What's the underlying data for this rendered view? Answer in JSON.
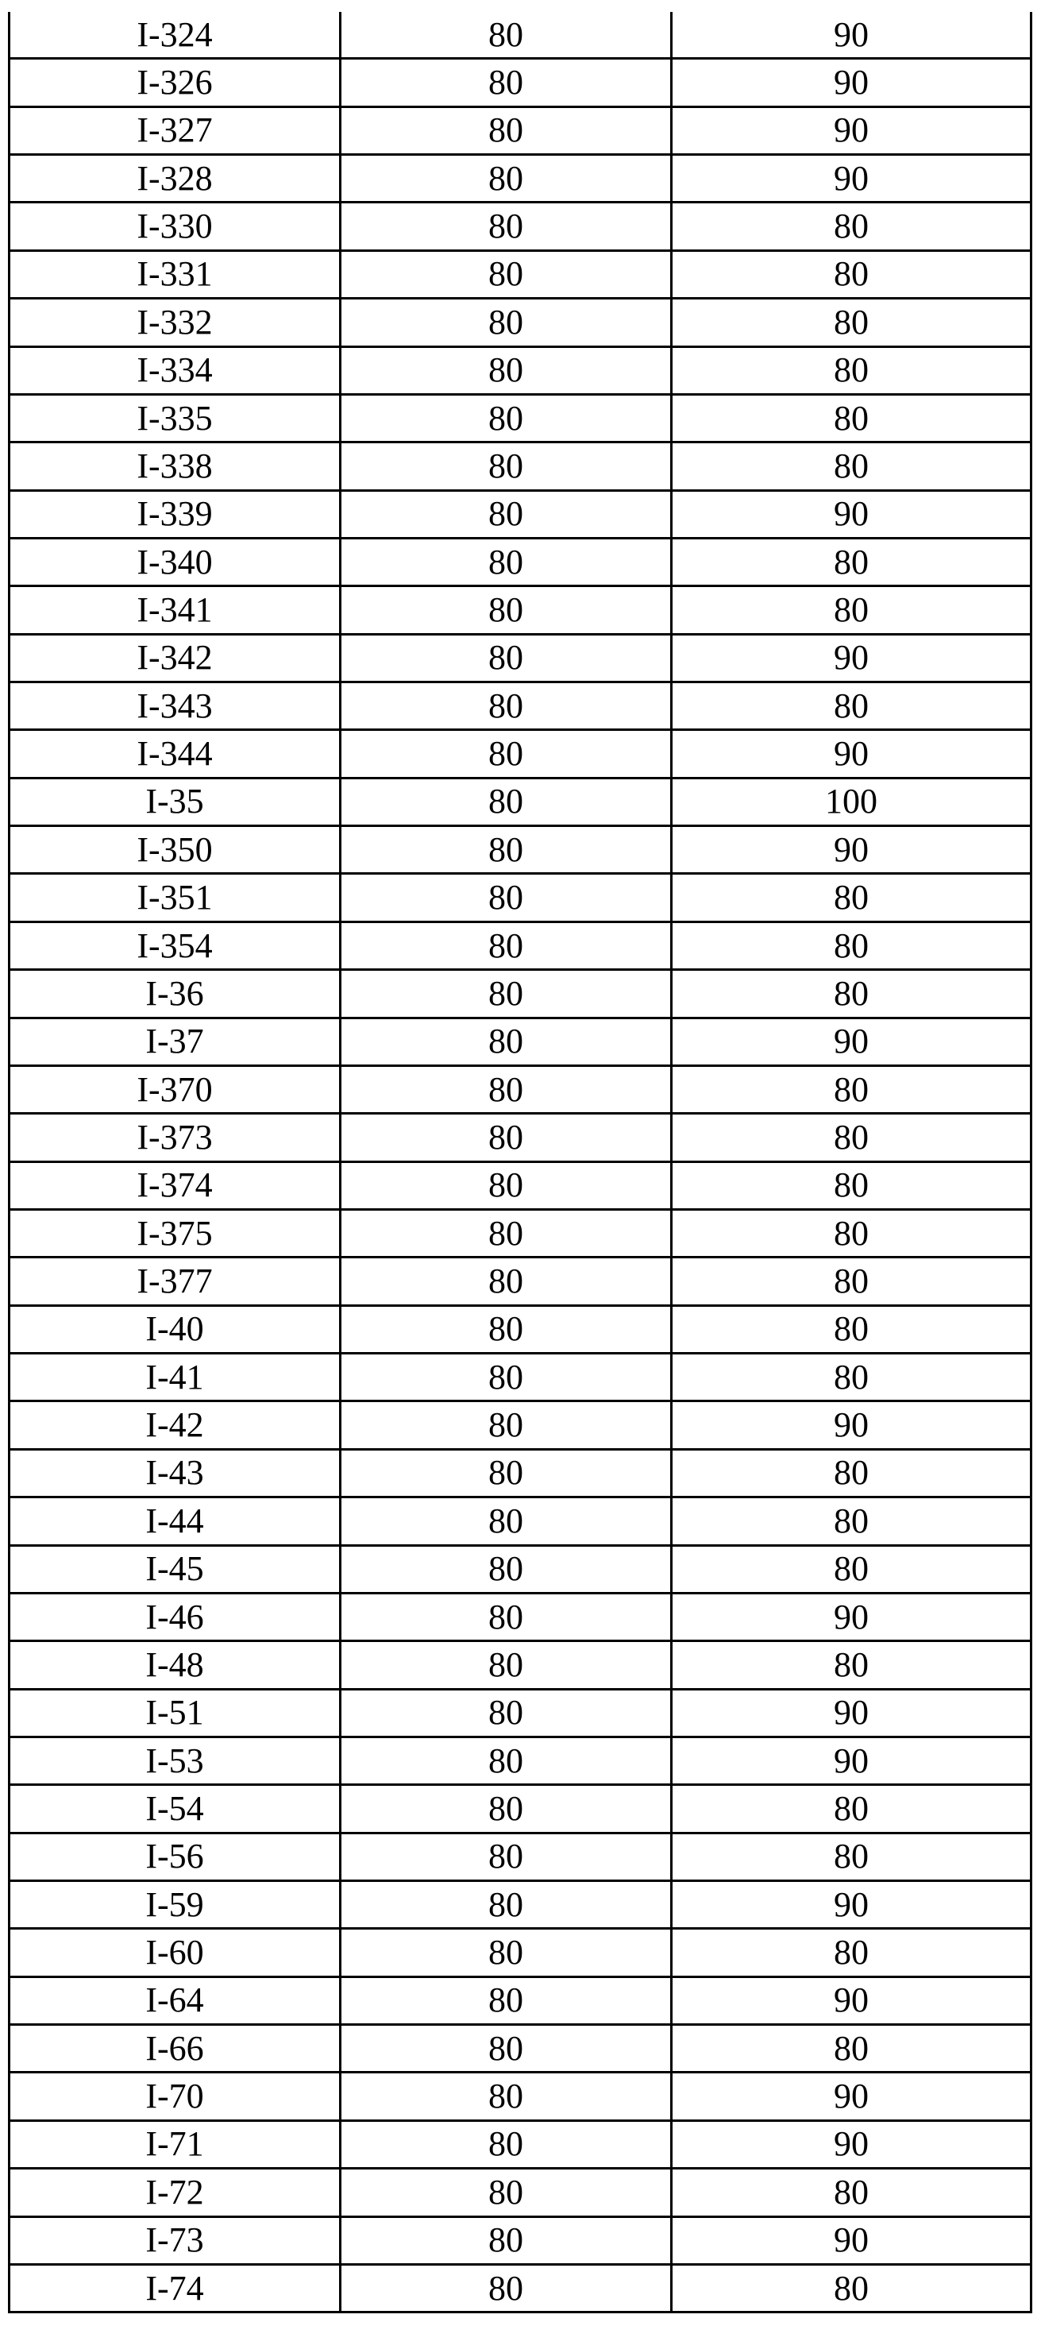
{
  "colors": {
    "background": "#ffffff",
    "border": "#000000",
    "text": "#000000"
  },
  "table": {
    "rows": [
      [
        "I-324",
        "80",
        "90"
      ],
      [
        "I-326",
        "80",
        "90"
      ],
      [
        "I-327",
        "80",
        "90"
      ],
      [
        "I-328",
        "80",
        "90"
      ],
      [
        "I-330",
        "80",
        "80"
      ],
      [
        "I-331",
        "80",
        "80"
      ],
      [
        "I-332",
        "80",
        "80"
      ],
      [
        "I-334",
        "80",
        "80"
      ],
      [
        "I-335",
        "80",
        "80"
      ],
      [
        "I-338",
        "80",
        "80"
      ],
      [
        "I-339",
        "80",
        "90"
      ],
      [
        "I-340",
        "80",
        "80"
      ],
      [
        "I-341",
        "80",
        "80"
      ],
      [
        "I-342",
        "80",
        "90"
      ],
      [
        "I-343",
        "80",
        "80"
      ],
      [
        "I-344",
        "80",
        "90"
      ],
      [
        "I-35",
        "80",
        "100"
      ],
      [
        "I-350",
        "80",
        "90"
      ],
      [
        "I-351",
        "80",
        "80"
      ],
      [
        "I-354",
        "80",
        "80"
      ],
      [
        "I-36",
        "80",
        "80"
      ],
      [
        "I-37",
        "80",
        "90"
      ],
      [
        "I-370",
        "80",
        "80"
      ],
      [
        "I-373",
        "80",
        "80"
      ],
      [
        "I-374",
        "80",
        "80"
      ],
      [
        "I-375",
        "80",
        "80"
      ],
      [
        "I-377",
        "80",
        "80"
      ],
      [
        "I-40",
        "80",
        "80"
      ],
      [
        "I-41",
        "80",
        "80"
      ],
      [
        "I-42",
        "80",
        "90"
      ],
      [
        "I-43",
        "80",
        "80"
      ],
      [
        "I-44",
        "80",
        "80"
      ],
      [
        "I-45",
        "80",
        "80"
      ],
      [
        "I-46",
        "80",
        "90"
      ],
      [
        "I-48",
        "80",
        "80"
      ],
      [
        "I-51",
        "80",
        "90"
      ],
      [
        "I-53",
        "80",
        "90"
      ],
      [
        "I-54",
        "80",
        "80"
      ],
      [
        "I-56",
        "80",
        "80"
      ],
      [
        "I-59",
        "80",
        "90"
      ],
      [
        "I-60",
        "80",
        "80"
      ],
      [
        "I-64",
        "80",
        "90"
      ],
      [
        "I-66",
        "80",
        "80"
      ],
      [
        "I-70",
        "80",
        "90"
      ],
      [
        "I-71",
        "80",
        "90"
      ],
      [
        "I-72",
        "80",
        "80"
      ],
      [
        "I-73",
        "80",
        "90"
      ],
      [
        "I-74",
        "80",
        "80"
      ]
    ]
  }
}
